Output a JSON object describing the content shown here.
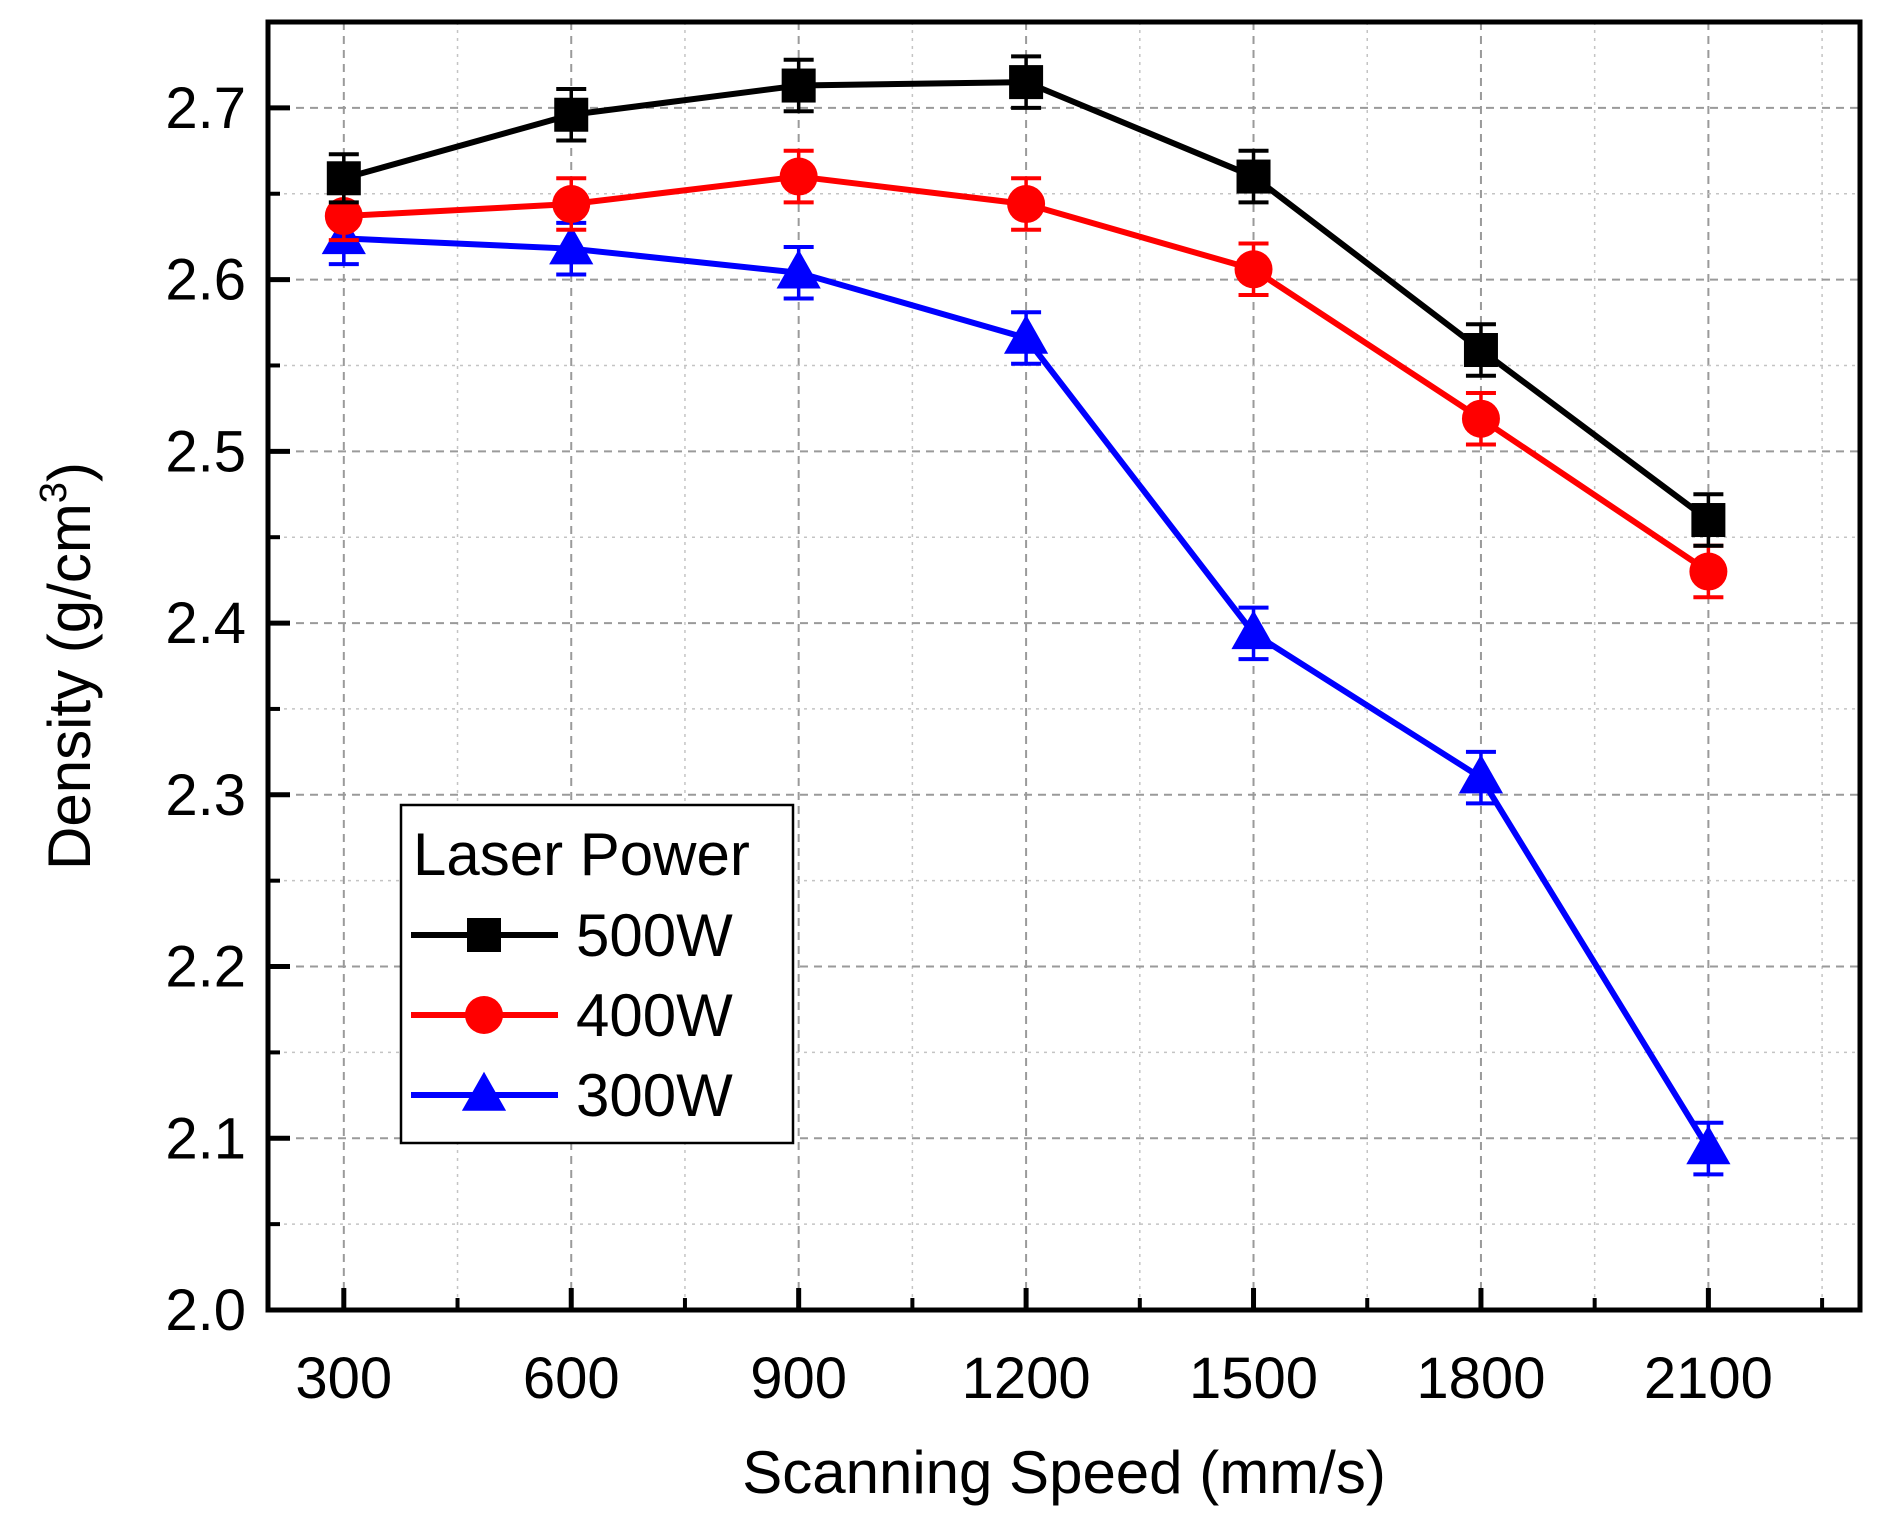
{
  "chart_data": {
    "type": "line",
    "title": "",
    "xlabel": "Scanning Speed (mm/s)",
    "ylabel_main": "Density (g/cm",
    "ylabel_sup": "3",
    "ylabel_end": ")",
    "x": [
      300,
      600,
      900,
      1200,
      1500,
      1800,
      2100
    ],
    "x_tick_labels": [
      "300",
      "600",
      "900",
      "1200",
      "1500",
      "1800",
      "2100"
    ],
    "xlim": [
      200,
      2300
    ],
    "y_ticks": [
      2.0,
      2.1,
      2.2,
      2.3,
      2.4,
      2.5,
      2.6,
      2.7
    ],
    "y_tick_labels": [
      "2.0",
      "2.1",
      "2.2",
      "2.3",
      "2.4",
      "2.5",
      "2.6",
      "2.7"
    ],
    "ylim": [
      2.0,
      2.75
    ],
    "grid": true,
    "legend_title": "Laser Power",
    "legend_position": "bottom-left",
    "series": [
      {
        "name": "500W",
        "color": "#000000",
        "marker": "square",
        "values": [
          2.659,
          2.696,
          2.713,
          2.715,
          2.66,
          2.559,
          2.46
        ],
        "errors": [
          0.014,
          0.015,
          0.015,
          0.015,
          0.015,
          0.015,
          0.015
        ]
      },
      {
        "name": "400W",
        "color": "#ff0000",
        "marker": "circle",
        "values": [
          2.637,
          2.644,
          2.66,
          2.644,
          2.606,
          2.519,
          2.43
        ],
        "errors": [
          0.014,
          0.015,
          0.015,
          0.015,
          0.015,
          0.015,
          0.015
        ]
      },
      {
        "name": "300W",
        "color": "#0000ff",
        "marker": "triangle",
        "values": [
          2.624,
          2.618,
          2.604,
          2.566,
          2.394,
          2.31,
          2.094
        ],
        "errors": [
          0.015,
          0.015,
          0.015,
          0.015,
          0.015,
          0.015,
          0.015
        ]
      }
    ]
  }
}
